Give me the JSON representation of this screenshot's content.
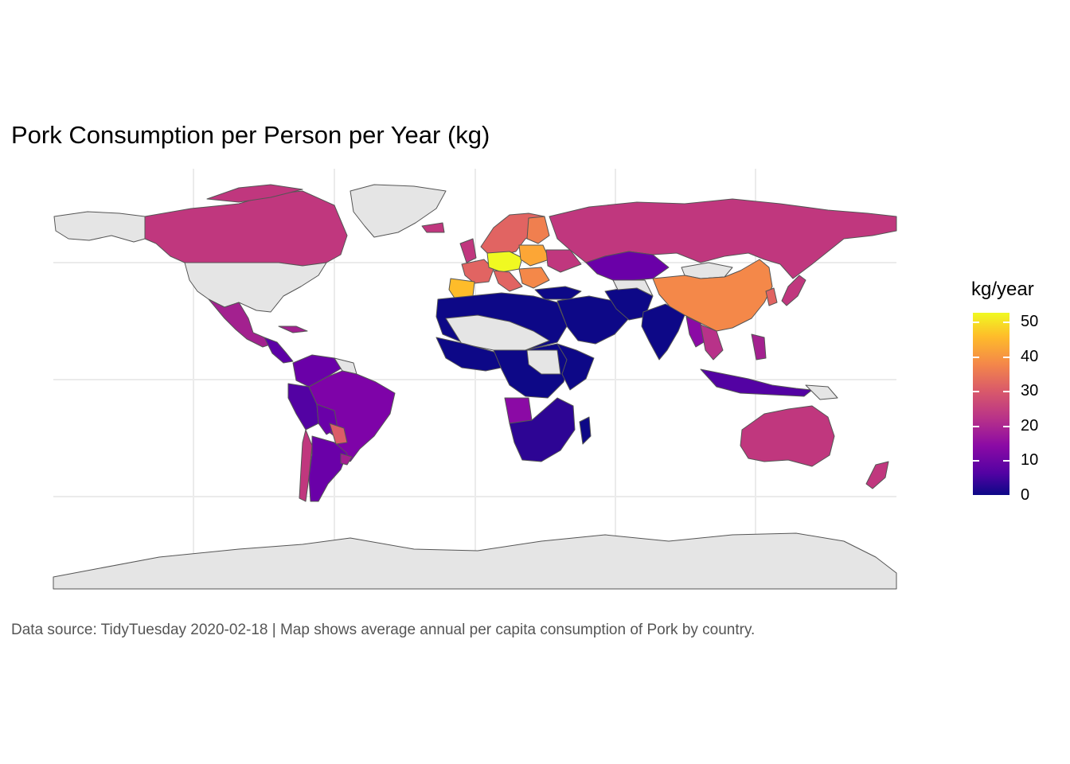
{
  "title": "Pork Consumption per Person per Year (kg)",
  "caption": "Data source: TidyTuesday 2020-02-18 | Map shows average annual per capita consumption of Pork by country.",
  "legend": {
    "title": "kg/year",
    "ticks": [
      "50",
      "40",
      "30",
      "20",
      "10",
      "0"
    ],
    "range": [
      0,
      53
    ],
    "palette": "plasma"
  },
  "colors": {
    "no_data": "#e5e5e5",
    "border": "#555555",
    "grid": "#ebebeb",
    "scale_low": "#0d0887",
    "scale_high": "#f0f921"
  }
}
